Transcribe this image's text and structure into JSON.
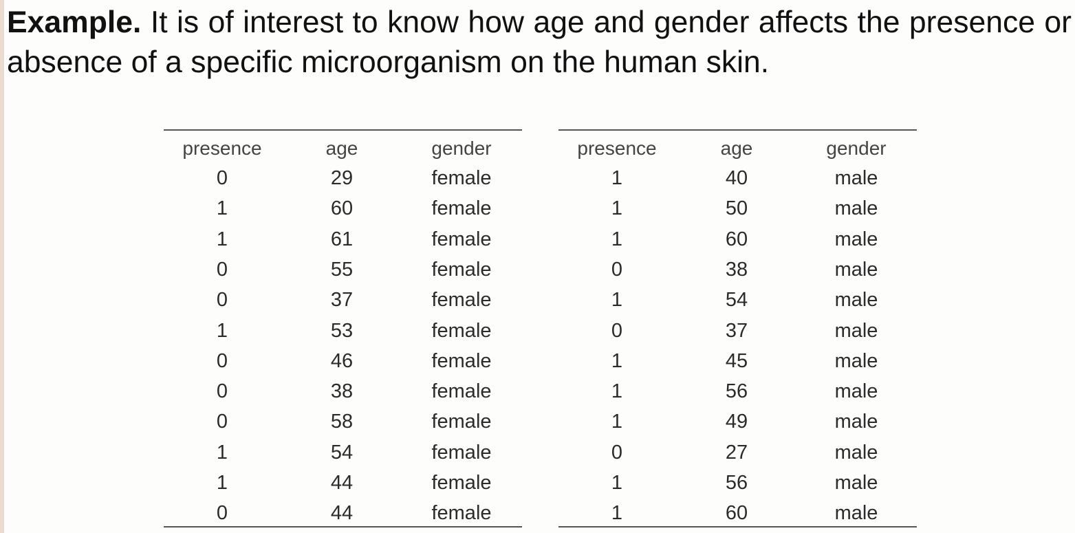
{
  "paragraph": {
    "label": "Example.",
    "text": "It is of interest to know how age and gender affects the presence or absence of a specific microorganism on the human skin."
  },
  "tables": [
    {
      "columns": [
        "presence",
        "age",
        "gender"
      ],
      "rows": [
        [
          0,
          29,
          "female"
        ],
        [
          1,
          60,
          "female"
        ],
        [
          1,
          61,
          "female"
        ],
        [
          0,
          55,
          "female"
        ],
        [
          0,
          37,
          "female"
        ],
        [
          1,
          53,
          "female"
        ],
        [
          0,
          46,
          "female"
        ],
        [
          0,
          38,
          "female"
        ],
        [
          0,
          58,
          "female"
        ],
        [
          1,
          54,
          "female"
        ],
        [
          1,
          44,
          "female"
        ],
        [
          0,
          44,
          "female"
        ]
      ]
    },
    {
      "columns": [
        "presence",
        "age",
        "gender"
      ],
      "rows": [
        [
          1,
          40,
          "male"
        ],
        [
          1,
          50,
          "male"
        ],
        [
          1,
          60,
          "male"
        ],
        [
          0,
          38,
          "male"
        ],
        [
          1,
          54,
          "male"
        ],
        [
          0,
          37,
          "male"
        ],
        [
          1,
          45,
          "male"
        ],
        [
          1,
          56,
          "male"
        ],
        [
          1,
          49,
          "male"
        ],
        [
          0,
          27,
          "male"
        ],
        [
          1,
          56,
          "male"
        ],
        [
          1,
          60,
          "male"
        ]
      ]
    }
  ]
}
